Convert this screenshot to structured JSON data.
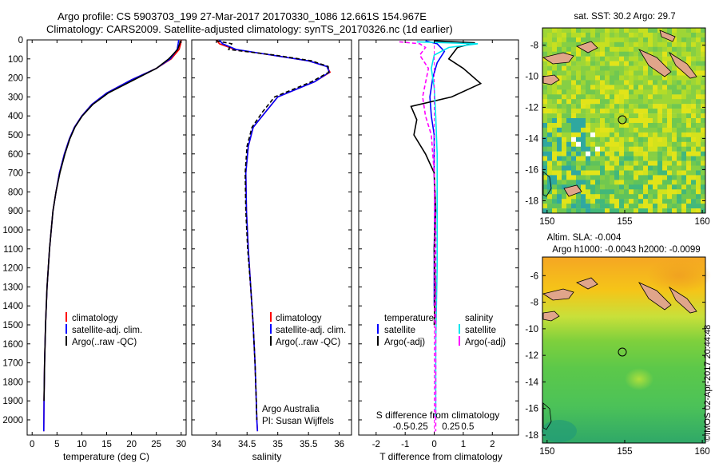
{
  "header": {
    "line1": "Argo profile: CS 5903703_199 27-Mar-2017 20170330_1086 12.661S 154.967E",
    "line2": "Climatology: CARS2009. Satellite-adjusted climatology: synTS_20170326.nc (1d earlier)"
  },
  "colors": {
    "climatology": "#ff0000",
    "satellite_adj": "#0000ff",
    "argo": "#000000",
    "salinity_satellite": "#00e5ee",
    "salinity_argo": "#ff00ff"
  },
  "chart_data": [
    {
      "type": "line",
      "id": "temperature",
      "xlabel": "temperature (deg C)",
      "ylabel": "",
      "xlim": [
        -1,
        31
      ],
      "ylim": [
        2080,
        0
      ],
      "xticks": [
        0,
        5,
        10,
        15,
        20,
        25,
        30
      ],
      "xtick_labels": [
        "0",
        "5",
        "10",
        "15",
        "20",
        "25",
        "30"
      ],
      "yticks": [
        0,
        100,
        200,
        300,
        400,
        500,
        600,
        700,
        800,
        900,
        1000,
        1100,
        1200,
        1300,
        1400,
        1500,
        1600,
        1700,
        1800,
        1900,
        2000
      ],
      "ytick_labels": [
        "0",
        "100",
        "200",
        "300",
        "400",
        "500",
        "600",
        "700",
        "800",
        "900",
        "1000",
        "1100",
        "1200",
        "1300",
        "1400",
        "1500",
        "1600",
        "1700",
        "1800",
        "1900",
        "2000"
      ],
      "legend": [
        "climatology",
        "satellite-adj. clim.",
        "Argo(..raw -QC)"
      ],
      "legend_placement": "lower-right",
      "series": [
        {
          "name": "climatology",
          "color": "#ff0000",
          "style": "solid",
          "x": [
            30,
            29.9,
            29.6,
            28,
            25,
            20,
            15,
            12,
            10,
            8.5,
            7.5,
            6.5,
            5.5,
            4.8,
            4.2,
            3.5,
            3.0,
            2.7,
            2.5,
            2.4,
            2.35
          ],
          "y": [
            0,
            20,
            50,
            100,
            150,
            210,
            280,
            340,
            400,
            460,
            520,
            600,
            700,
            800,
            900,
            1100,
            1300,
            1500,
            1700,
            1900,
            2060
          ]
        },
        {
          "name": "satellite-adj. clim.",
          "color": "#0000ff",
          "style": "solid",
          "x": [
            29.5,
            29.4,
            29.2,
            27.8,
            25,
            20,
            15,
            12,
            10,
            8.5,
            7.5,
            6.5,
            5.5,
            4.8,
            4.2,
            3.5,
            3.0,
            2.7,
            2.5,
            2.4,
            2.35
          ],
          "y": [
            0,
            20,
            50,
            100,
            150,
            210,
            280,
            340,
            400,
            460,
            520,
            600,
            700,
            800,
            900,
            1100,
            1300,
            1500,
            1700,
            1900,
            2060
          ]
        },
        {
          "name": "Argo(..raw -QC)",
          "color": "#000000",
          "style": "solid",
          "x": [
            29.8,
            29.7,
            29.3,
            27.5,
            25,
            20.5,
            15.3,
            12.2,
            10.1,
            8.6,
            7.6,
            6.6,
            5.6,
            4.8,
            4.2,
            3.5,
            3.0,
            2.7,
            2.5,
            2.4
          ],
          "y": [
            5,
            20,
            50,
            100,
            150,
            210,
            280,
            340,
            400,
            460,
            520,
            600,
            700,
            800,
            900,
            1100,
            1300,
            1500,
            1700,
            1900
          ]
        }
      ]
    },
    {
      "type": "line",
      "id": "salinity",
      "xlabel": "salinity",
      "ylabel": "",
      "xlim": [
        33.6,
        36.2
      ],
      "ylim": [
        2080,
        0
      ],
      "xticks": [
        34,
        34.5,
        35,
        35.5,
        36
      ],
      "xtick_labels": [
        "34",
        "34.5",
        "35",
        "35.5",
        "36"
      ],
      "legend": [
        "climatology",
        "satellite-adj. clim.",
        "Argo(..raw -QC)"
      ],
      "legend_placement": "lower-right",
      "annotations": [
        "Argo Australia",
        "PI: Susan Wijffels"
      ],
      "series": [
        {
          "name": "climatology",
          "color": "#ff0000",
          "style": "solid",
          "x": [
            34.0,
            34.05,
            34.3,
            34.9,
            35.5,
            35.8,
            35.85,
            35.6,
            35.0,
            34.8,
            34.6,
            34.52,
            34.48,
            34.49,
            34.52,
            34.56,
            34.6,
            34.63,
            34.65,
            34.66,
            34.67
          ],
          "y": [
            0,
            20,
            50,
            80,
            110,
            140,
            170,
            220,
            300,
            380,
            460,
            560,
            700,
            900,
            1100,
            1300,
            1500,
            1700,
            1900,
            2000,
            2060
          ]
        },
        {
          "name": "satellite-adj. clim.",
          "color": "#0000ff",
          "style": "solid",
          "x": [
            34.05,
            34.1,
            34.32,
            34.9,
            35.5,
            35.8,
            35.84,
            35.6,
            35.0,
            34.8,
            34.6,
            34.52,
            34.48,
            34.49,
            34.52,
            34.56,
            34.6,
            34.63,
            34.65,
            34.66,
            34.67
          ],
          "y": [
            0,
            20,
            50,
            80,
            110,
            140,
            170,
            220,
            300,
            380,
            460,
            560,
            700,
            900,
            1100,
            1300,
            1500,
            1700,
            1900,
            2000,
            2060
          ]
        },
        {
          "name": "Argo(..raw -QC)",
          "color": "#000000",
          "style": "dashed",
          "x": [
            34.0,
            34.25,
            34.2,
            34.95,
            35.55,
            35.82,
            35.83,
            35.55,
            34.95,
            34.75,
            34.58,
            34.5,
            34.47,
            34.48,
            34.51,
            34.56,
            34.6,
            34.63,
            34.65,
            34.66
          ],
          "y": [
            5,
            20,
            50,
            80,
            110,
            140,
            170,
            220,
            300,
            380,
            460,
            560,
            700,
            900,
            1100,
            1300,
            1500,
            1700,
            1900,
            2000
          ]
        }
      ]
    },
    {
      "type": "line",
      "id": "difference",
      "xlabel": "T difference from climatology",
      "xlabel2": "S difference from climatology",
      "xlim": [
        -2.6,
        2.9
      ],
      "ylim": [
        2080,
        0
      ],
      "xticks": [
        -2,
        -1,
        0,
        1,
        2
      ],
      "xtick_labels": [
        "-2",
        "-1",
        "0",
        "1",
        "2"
      ],
      "xticks_top": [
        -1.15,
        -0.575,
        0.575,
        1.15
      ],
      "xtick_labels_top": [
        "-0.5",
        "-0.25",
        "0.25",
        "0.5"
      ],
      "legend": [
        "temperature",
        "satellite",
        "Argo(-adj)",
        "salinity",
        "satellite",
        "Argo(-adj)"
      ],
      "legend_placement": "lower-right",
      "series": [
        {
          "name": "temperature satellite",
          "color": "#0000ff",
          "style": "solid",
          "x": [
            -0.3,
            0.1,
            0.35,
            0.1,
            -0.05,
            -0.15,
            -0.1,
            0.0,
            0.0,
            0.02,
            0.0,
            0.0
          ],
          "y": [
            5,
            20,
            60,
            120,
            200,
            300,
            400,
            500,
            700,
            900,
            1100,
            1400
          ]
        },
        {
          "name": "temperature Argo(-adj)",
          "color": "#000000",
          "style": "solid",
          "x": [
            0.0,
            1.4,
            0.8,
            0.5,
            1.0,
            1.6,
            0.6,
            -0.8,
            -0.6,
            -0.7,
            -0.3,
            0.0,
            0.05,
            0.0,
            0.03,
            0.0
          ],
          "y": [
            5,
            15,
            40,
            100,
            150,
            230,
            300,
            350,
            420,
            500,
            600,
            700,
            900,
            1100,
            1300,
            1500
          ]
        },
        {
          "name": "salinity satellite",
          "color": "#00e5ee",
          "style": "solid",
          "x": [
            -0.6,
            1.5,
            0.5,
            0.0,
            -0.1,
            0.0,
            0.05,
            0.1,
            0.1,
            0.1,
            0.05,
            0.05
          ],
          "y": [
            10,
            20,
            40,
            80,
            150,
            250,
            400,
            600,
            900,
            1200,
            1600,
            2000
          ]
        },
        {
          "name": "salinity Argo(-adj)",
          "color": "#ff00ff",
          "style": "dashed",
          "x": [
            -1.2,
            -0.5,
            -0.3,
            -0.5,
            -0.2,
            -0.4,
            -0.3,
            -0.1,
            0.0,
            0.05,
            0.05,
            0.05
          ],
          "y": [
            10,
            20,
            40,
            80,
            150,
            300,
            400,
            500,
            700,
            1000,
            1500,
            2060
          ]
        }
      ]
    }
  ],
  "maps": [
    {
      "id": "sst-map",
      "title": "sat. SST: 30.2 Argo: 29.7",
      "yticks": [
        -8,
        -10,
        -12,
        -14,
        -16,
        -18
      ],
      "ytick_labels": [
        "-8",
        "-10",
        "-12",
        "-14",
        "-16",
        "-18"
      ],
      "xticks": [
        150,
        155,
        160
      ],
      "xtick_labels": [
        "150",
        "155",
        "160"
      ],
      "xlim": [
        149.7,
        160.2
      ],
      "ylim": [
        -6.9,
        -18.8
      ],
      "profile_position": {
        "lon": 154.967,
        "lat": -12.661
      }
    },
    {
      "id": "sla-map",
      "title": "Altim. SLA: -0.004",
      "title2": "Argo h1000: -0.0043 h2000: -0.0099",
      "yticks": [
        -6,
        -8,
        -10,
        -12,
        -14,
        -16,
        -18
      ],
      "ytick_labels": [
        "-6",
        "-8",
        "-10",
        "-12",
        "-14",
        "-16",
        "-18"
      ],
      "xticks": [
        150,
        155,
        160
      ],
      "xtick_labels": [
        "150",
        "155",
        "160"
      ],
      "xlim": [
        149.7,
        160.2
      ],
      "ylim": [
        -4.6,
        -18.6
      ],
      "profile_position": {
        "lon": 154.967,
        "lat": -12.661
      }
    }
  ],
  "watermark": "©IMOS 02-Apr-2017 20:44:48"
}
